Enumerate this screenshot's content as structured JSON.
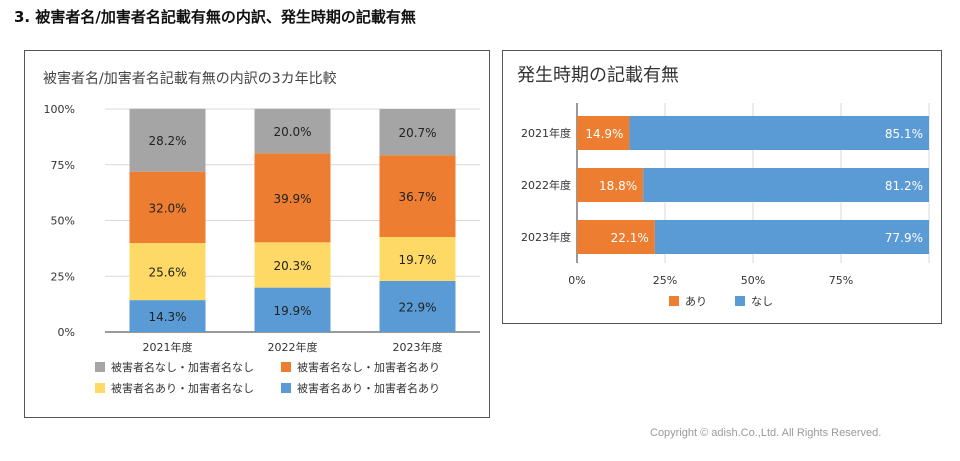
{
  "page": {
    "heading": "3.  被害者名/加害者名記載有無の内訳、発生時期の記載有無",
    "footer": "Copyright © adish.Co.,Ltd.  All Rights Reserved."
  },
  "colors": {
    "gray": "#A5A5A5",
    "orange": "#ED7D31",
    "yellow": "#FFD966",
    "blue": "#5B9BD5",
    "grid": "#D9D9D9",
    "axis": "#333333"
  },
  "chart_data": [
    {
      "type": "bar",
      "stacked": true,
      "percent": true,
      "title": "被害者名/加害者名記載有無の内訳の3カ年比較",
      "categories": [
        "2021年度",
        "2022年度",
        "2023年度"
      ],
      "y_ticks": [
        "0%",
        "25%",
        "50%",
        "75%",
        "100%"
      ],
      "ylim": [
        0,
        100
      ],
      "grid": true,
      "legend_position": "bottom",
      "series": [
        {
          "name": "被害者名あり・加害者名あり",
          "color_key": "blue",
          "values": [
            14.3,
            19.9,
            22.9
          ],
          "labels": [
            "14.3%",
            "19.9%",
            "22.9%"
          ]
        },
        {
          "name": "被害者名あり・加害者名なし",
          "color_key": "yellow",
          "values": [
            25.6,
            20.3,
            19.7
          ],
          "labels": [
            "25.6%",
            "20.3%",
            "19.7%"
          ]
        },
        {
          "name": "被害者名なし・加害者名あり",
          "color_key": "orange",
          "values": [
            32.0,
            39.9,
            36.7
          ],
          "labels": [
            "32.0%",
            "39.9%",
            "36.7%"
          ]
        },
        {
          "name": "被害者名なし・加害者名なし",
          "color_key": "gray",
          "values": [
            28.2,
            20.0,
            20.7
          ],
          "labels": [
            "28.2%",
            "20.0%",
            "20.7%"
          ]
        }
      ],
      "legend_order": [
        "被害者名なし・加害者名なし",
        "被害者名なし・加害者名あり",
        "被害者名あり・加害者名なし",
        "被害者名あり・加害者名あり"
      ]
    },
    {
      "type": "bar",
      "orientation": "horizontal",
      "stacked": true,
      "percent": true,
      "title": "発生時期の記載有無",
      "categories": [
        "2021年度",
        "2022年度",
        "2023年度"
      ],
      "x_ticks": [
        "0%",
        "25%",
        "50%",
        "75%"
      ],
      "xlim": [
        0,
        100
      ],
      "grid": true,
      "legend_position": "bottom",
      "series": [
        {
          "name": "あり",
          "color_key": "orange",
          "values": [
            14.9,
            18.8,
            22.1
          ],
          "labels": [
            "14.9%",
            "18.8%",
            "22.1%"
          ]
        },
        {
          "name": "なし",
          "color_key": "blue",
          "values": [
            85.1,
            81.2,
            77.9
          ],
          "labels": [
            "85.1%",
            "81.2%",
            "77.9%"
          ]
        }
      ]
    }
  ]
}
